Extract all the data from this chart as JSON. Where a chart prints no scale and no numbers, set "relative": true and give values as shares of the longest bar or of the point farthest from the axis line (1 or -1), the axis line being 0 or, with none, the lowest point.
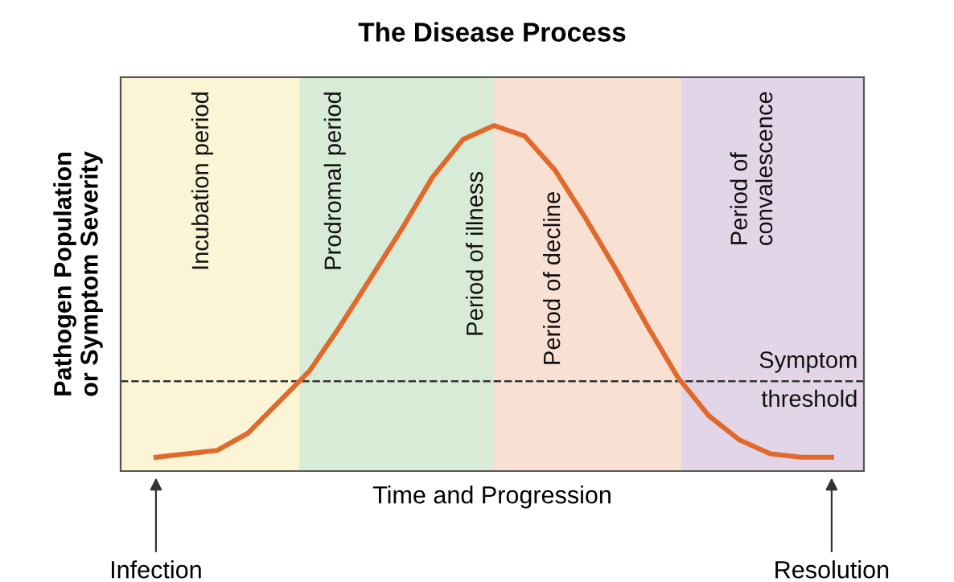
{
  "chart_data": {
    "type": "line",
    "title": "The Disease Process",
    "xlabel": "Time and Progression",
    "ylabel": "Pathogen Population\nor Symptom Severity",
    "relative": true,
    "legend": false,
    "marker": "none",
    "line_style": "solid",
    "categories": [
      null,
      null,
      null,
      null,
      null,
      null,
      null,
      null,
      null,
      null,
      null,
      null,
      null,
      null,
      null,
      null,
      null,
      null,
      null,
      null,
      null,
      null,
      null
    ],
    "series": [
      {
        "color": "#e0692b",
        "values": [
          0.04,
          0.05,
          0.06,
          0.11,
          0.2,
          0.29,
          0.42,
          0.56,
          0.7,
          0.85,
          0.96,
          1.0,
          0.97,
          0.87,
          0.73,
          0.58,
          0.42,
          0.27,
          0.16,
          0.09,
          0.05,
          0.04,
          0.04
        ]
      }
    ],
    "ref_lines": [
      {
        "axis": "y",
        "value": 0.26,
        "label": "Symptom\nthreshold",
        "color": "#333333",
        "line_style": "dashed"
      }
    ],
    "annotations": [
      "Incubation period",
      "Prodromal period",
      "Period of illness",
      "Period of decline",
      "Period of\nconvalescence",
      "Infection",
      "Resolution"
    ]
  }
}
